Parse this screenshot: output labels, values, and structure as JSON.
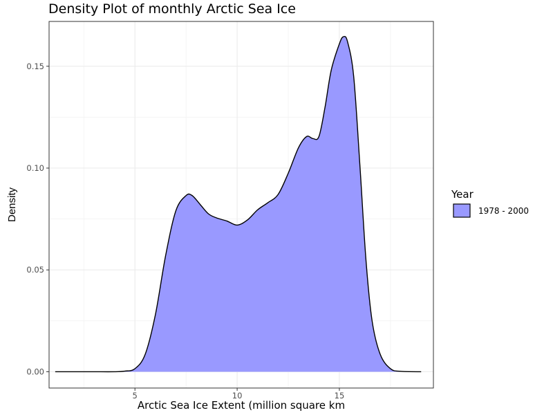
{
  "chart_data": {
    "type": "area",
    "title": "Density Plot of monthly Arctic Sea Ice",
    "xlabel": "Arctic Sea Ice Extent (million square km",
    "ylabel": "Density",
    "xlim": [
      0.8,
      19.6
    ],
    "ylim": [
      -0.008,
      0.172
    ],
    "x_ticks": [
      5,
      10,
      15
    ],
    "x_tick_labels": [
      "5",
      "10",
      "15"
    ],
    "y_ticks": [
      0,
      0.05,
      0.1,
      0.15
    ],
    "y_tick_labels": [
      "0.00",
      "0.05",
      "0.10",
      "0.15"
    ],
    "grid": true,
    "legend_position": "right",
    "legend_title": "Year",
    "series": [
      {
        "name": "1978 - 2000",
        "color": "#9999ff",
        "line_color": "#000000",
        "x": [
          1.1,
          2.0,
          3.0,
          4.0,
          4.5,
          5.0,
          5.5,
          6.0,
          6.5,
          7.0,
          7.5,
          7.8,
          8.2,
          8.6,
          9.0,
          9.5,
          10.0,
          10.5,
          11.0,
          11.5,
          12.0,
          12.5,
          13.0,
          13.4,
          13.7,
          14.0,
          14.3,
          14.6,
          15.0,
          15.2,
          15.4,
          15.7,
          16.0,
          16.3,
          16.6,
          17.0,
          17.5,
          18.0,
          19.0
        ],
        "y": [
          0.0,
          0.0,
          0.0,
          0.0,
          0.0003,
          0.0015,
          0.0085,
          0.028,
          0.057,
          0.079,
          0.0865,
          0.0865,
          0.082,
          0.0775,
          0.0755,
          0.074,
          0.072,
          0.0745,
          0.0795,
          0.083,
          0.087,
          0.0975,
          0.11,
          0.1155,
          0.1145,
          0.1155,
          0.13,
          0.148,
          0.161,
          0.1645,
          0.162,
          0.145,
          0.102,
          0.055,
          0.025,
          0.0085,
          0.0015,
          0.0002,
          0.0
        ]
      }
    ]
  }
}
